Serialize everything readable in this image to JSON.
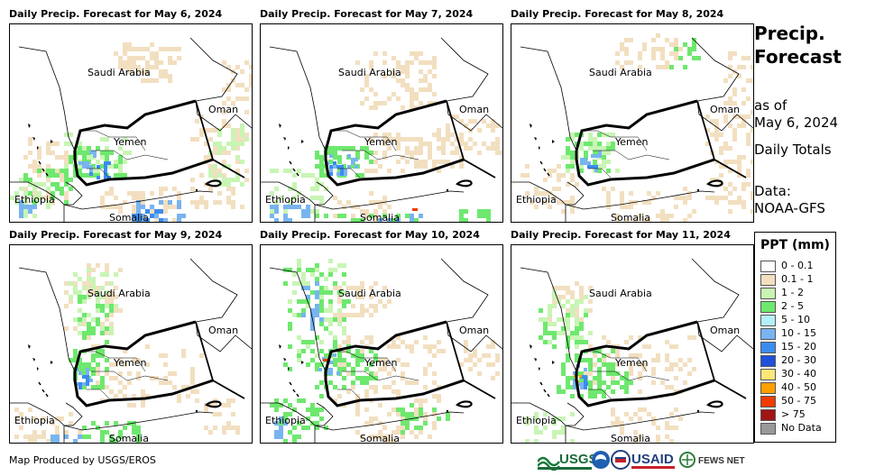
{
  "panels": [
    {
      "title": "Daily Precip. Forecast for May 6, 2024"
    },
    {
      "title": "Daily Precip. Forecast for May 7, 2024"
    },
    {
      "title": "Daily Precip. Forecast for May 8, 2024"
    },
    {
      "title": "Daily Precip. Forecast for May 9, 2024"
    },
    {
      "title": "Daily Precip. Forecast for May 10, 2024"
    },
    {
      "title": "Daily Precip. Forecast for May 11, 2024"
    }
  ],
  "map_labels": {
    "saudi": "Saudi Arabia",
    "oman": "Oman",
    "yemen": "Yemen",
    "ethiopia": "Ethiopia",
    "somalia": "Somalia"
  },
  "side": {
    "title_line1": "Precip.",
    "title_line2": "Forecast",
    "asof_line1": "as of",
    "asof_line2": "May 6, 2024",
    "totals": "Daily Totals",
    "data_line1": "Data:",
    "data_line2": "NOAA-GFS"
  },
  "legend": {
    "title": "PPT (mm)",
    "items": [
      {
        "label": "0 - 0.1",
        "color": "#ffffff"
      },
      {
        "label": "0.1 - 1",
        "color": "#f2dfc0"
      },
      {
        "label": "1 - 2",
        "color": "#c8f5b4"
      },
      {
        "label": "2 - 5",
        "color": "#6ee86e"
      },
      {
        "label": "5 - 10",
        "color": "#b4f0f8"
      },
      {
        "label": "10 - 15",
        "color": "#78b4f0"
      },
      {
        "label": "15 - 20",
        "color": "#3c8cf0"
      },
      {
        "label": "20 - 30",
        "color": "#1e50dc"
      },
      {
        "label": "30 - 40",
        "color": "#ffe678"
      },
      {
        "label": "40 - 50",
        "color": "#ffa000"
      },
      {
        "label": "50 - 75",
        "color": "#f03c00"
      },
      {
        "label": "> 75",
        "color": "#a01414"
      },
      {
        "label": "No Data",
        "color": "#999999"
      }
    ]
  },
  "credit": "Map Produced by USGS/EROS",
  "logos": {
    "usgs": "USGS",
    "usaid": "USAID",
    "fewsnet": "FEWS NET"
  }
}
